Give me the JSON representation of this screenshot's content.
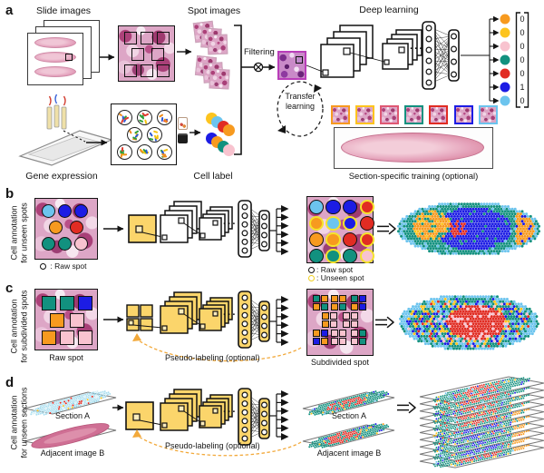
{
  "palette": {
    "orange": "#f79a1f",
    "yellow": "#fdc41e",
    "pink": "#f8c3cf",
    "teal": "#12917f",
    "red": "#e12c23",
    "blue": "#1c1ce4",
    "lightblue": "#6cc4ee",
    "crimson": "#df5873"
  },
  "panel_a": {
    "label": "a",
    "slide_images_title": "Slide images",
    "spot_images_title": "Spot images",
    "deep_learning_title": "Deep learning",
    "filtering_label": "Filtering",
    "transfer_learning_line1": "Transfer",
    "transfer_learning_line2": "learning",
    "gene_expression_label": "Gene expression",
    "cell_label_label": "Cell label",
    "section_training_label": "Section-specific training (optional)",
    "ellipsis": "···",
    "output_classes": [
      {
        "color": "orange",
        "value": "0"
      },
      {
        "color": "yellow",
        "value": "0"
      },
      {
        "color": "pink",
        "value": "0"
      },
      {
        "color": "teal",
        "value": "0"
      },
      {
        "color": "red",
        "value": "0"
      },
      {
        "color": "blue",
        "value": "1"
      },
      {
        "color": "lightblue",
        "value": "0"
      }
    ],
    "cell_label_stacks": [
      [
        "yellow",
        "lightblue",
        "red",
        "orange"
      ],
      [
        "blue",
        "orange",
        "teal",
        "pink"
      ]
    ],
    "training_patch_borders": [
      "orange",
      "yellow",
      "crimson",
      "teal",
      "red",
      "blue",
      "lightblue"
    ]
  },
  "panel_b": {
    "label": "b",
    "side_label_line1": "Cell annotation",
    "side_label_line2": "for unseen spots",
    "raw_legend": " : Raw spot",
    "out_legend_raw": ": Raw spot",
    "out_legend_unseen": ": Unseen spot",
    "ellipsis": "···",
    "raw_spots": [
      [
        "lightblue",
        "blue",
        "blue"
      ],
      [
        "orange",
        "red"
      ],
      [
        "teal",
        "teal",
        "pink"
      ]
    ],
    "output_spots": [
      [
        [
          "lightblue",
          0
        ],
        [
          "blue",
          0
        ],
        [
          "blue",
          0
        ],
        [
          "red",
          1
        ]
      ],
      [
        [
          "orange",
          1
        ],
        [
          "lightblue",
          1
        ],
        [
          "blue",
          1
        ],
        [
          "red",
          0
        ]
      ],
      [
        [
          "orange",
          0
        ],
        [
          "orange",
          1
        ],
        [
          "red",
          0
        ],
        [
          "red",
          1
        ]
      ],
      [
        [
          "teal",
          0
        ],
        [
          "teal",
          1
        ],
        [
          "teal",
          0
        ],
        [
          "pink",
          1
        ]
      ]
    ]
  },
  "panel_c": {
    "label": "c",
    "side_label_line1": "Cell annotation",
    "side_label_line2": "for subdivided spots",
    "raw_caption": "Raw spot",
    "subdivided_caption": "Subdivided spot",
    "pseudo_label": "Pseudo-labeling (optional)",
    "ellipsis": "···",
    "raw_spots": [
      [
        "teal",
        "teal",
        "blue"
      ],
      [
        "orange",
        "pink"
      ],
      [
        "orange",
        "pink",
        "pink"
      ]
    ],
    "subdivided_spots": [
      [
        [
          "teal",
          "orange",
          "orange",
          "teal"
        ],
        [
          "orange",
          "orange",
          "orange",
          "teal"
        ],
        [
          "teal",
          "blue",
          "orange",
          "blue"
        ]
      ],
      [
        [
          "orange",
          "pink",
          "orange",
          "pink"
        ],
        [
          "pink",
          "pink",
          "pink",
          "pink"
        ]
      ],
      [
        [
          "orange",
          "blue",
          "blue",
          "orange"
        ],
        [
          "pink",
          "pink",
          "pink",
          "pink"
        ],
        [
          "pink",
          "teal",
          "pink",
          "teal"
        ]
      ]
    ]
  },
  "panel_d": {
    "label": "d",
    "side_label_line1": "Cell annotation",
    "side_label_line2": "for unseen sections",
    "section_a_label": "Section A",
    "adjacent_b_label": "Adjacent image B",
    "section_a_label_out": "Section A",
    "adjacent_b_label_out": "Adjacent image B",
    "pseudo_label": "Pseudo-labeling (optional)",
    "ellipsis": "···",
    "stack_layers": 10
  }
}
